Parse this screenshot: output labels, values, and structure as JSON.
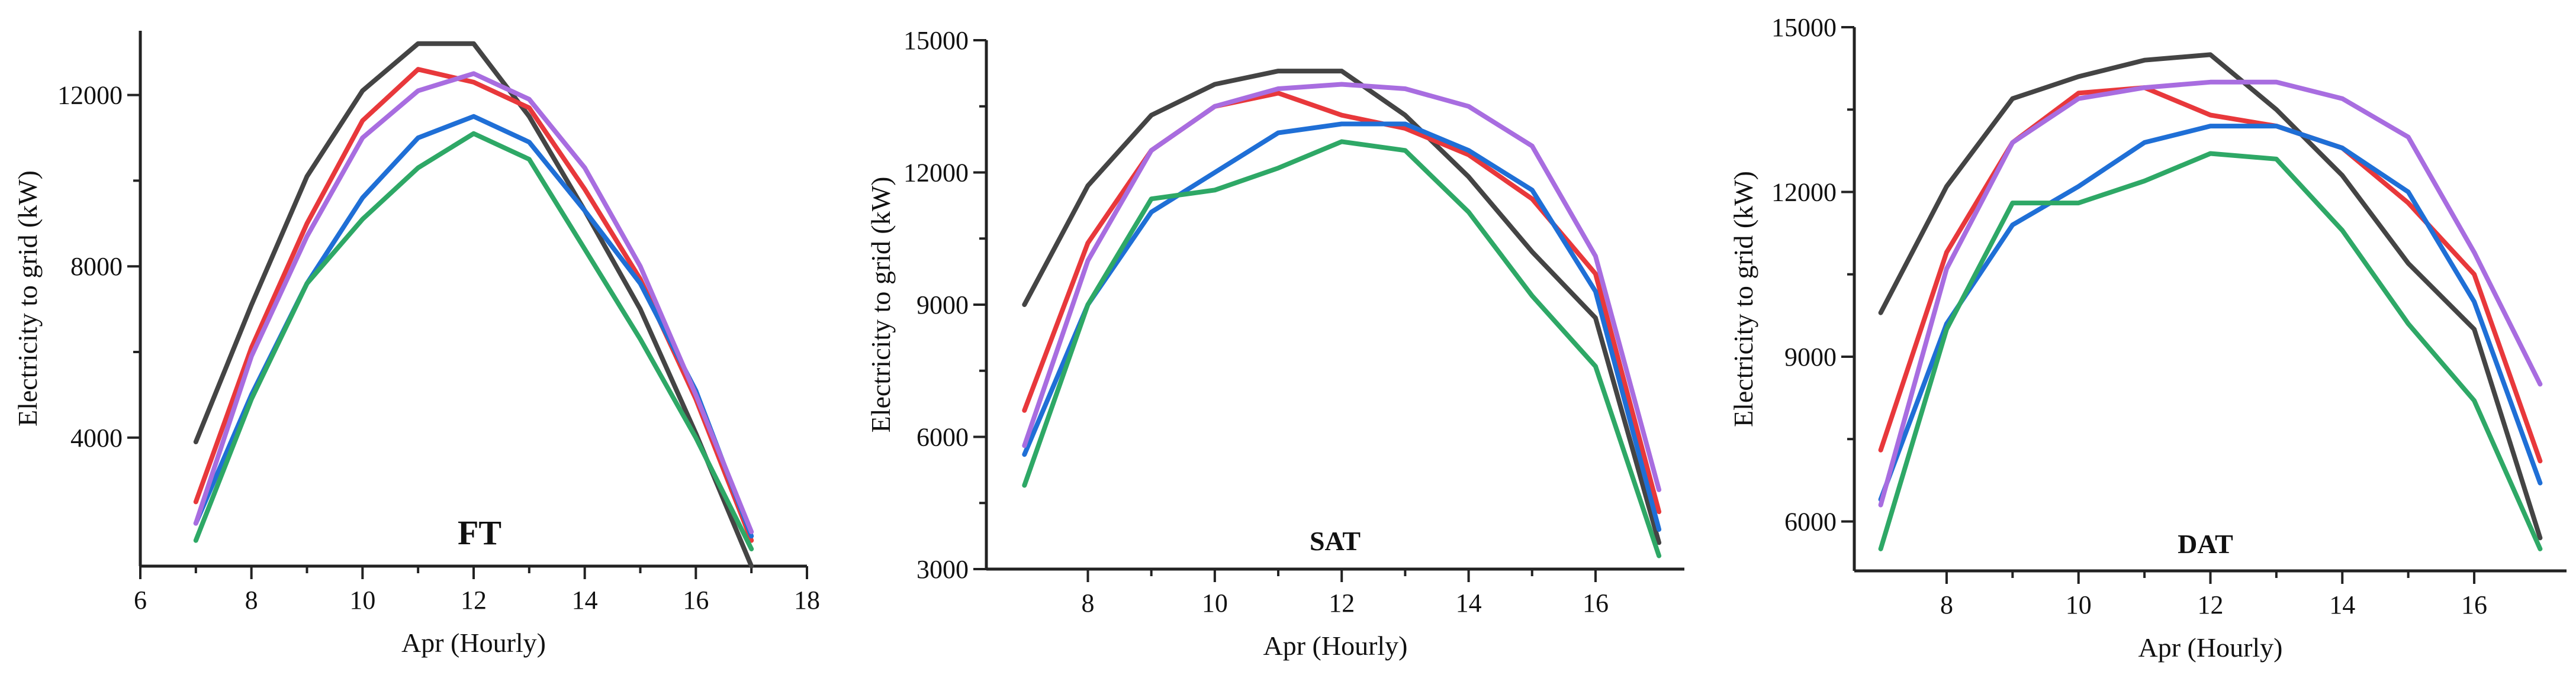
{
  "chart_data": [
    {
      "type": "line",
      "title": "FT",
      "xlabel": "Apr (Hourly)",
      "ylabel": "Electricity to grid (kW)",
      "xlim": [
        6,
        18
      ],
      "ylim": [
        1000,
        13500
      ],
      "xticks": [
        6,
        8,
        10,
        12,
        14,
        16,
        18
      ],
      "yticks": [
        4000,
        8000,
        12000
      ],
      "x": [
        7,
        8,
        9,
        10,
        11,
        12,
        13,
        14,
        15,
        16,
        17
      ],
      "series": [
        {
          "name": "series-1",
          "color": "#444444",
          "values": [
            3900,
            7100,
            10100,
            12100,
            13200,
            13200,
            11500,
            9300,
            7000,
            4100,
            1000
          ]
        },
        {
          "name": "series-2",
          "color": "#e8383b",
          "values": [
            2500,
            6100,
            9000,
            11400,
            12600,
            12300,
            11700,
            9800,
            7700,
            4900,
            1600
          ]
        },
        {
          "name": "series-3",
          "color": "#1f6fd6",
          "values": [
            2000,
            5000,
            7600,
            9600,
            11000,
            11500,
            10900,
            9300,
            7600,
            5100,
            1700
          ]
        },
        {
          "name": "series-4",
          "color": "#a86de0",
          "values": [
            2000,
            5900,
            8700,
            11000,
            12100,
            12500,
            11900,
            10300,
            8000,
            5000,
            1800
          ]
        },
        {
          "name": "series-5",
          "color": "#2ea866",
          "values": [
            1600,
            4900,
            7600,
            9100,
            10300,
            11100,
            10500,
            8400,
            6300,
            4000,
            1400
          ]
        }
      ]
    },
    {
      "type": "line",
      "title": "SAT",
      "xlabel": "Apr (Hourly)",
      "ylabel": "Electricity to grid (kW)",
      "xlim": [
        6.4,
        17.4
      ],
      "ylim": [
        3000,
        15000
      ],
      "xticks": [
        8,
        10,
        12,
        14,
        16
      ],
      "yticks": [
        3000,
        6000,
        9000,
        12000,
        15000
      ],
      "x": [
        7,
        8,
        9,
        10,
        11,
        12,
        13,
        14,
        15,
        16,
        17
      ],
      "series": [
        {
          "name": "series-1",
          "color": "#444444",
          "values": [
            9000,
            11700,
            13300,
            14000,
            14300,
            14300,
            13300,
            11900,
            10200,
            8700,
            3600
          ]
        },
        {
          "name": "series-2",
          "color": "#e8383b",
          "values": [
            6600,
            10400,
            12500,
            13500,
            13800,
            13300,
            13000,
            12400,
            11400,
            9700,
            4300
          ]
        },
        {
          "name": "series-3",
          "color": "#1f6fd6",
          "values": [
            5600,
            9000,
            11100,
            12000,
            12900,
            13100,
            13100,
            12500,
            11600,
            9300,
            3900
          ]
        },
        {
          "name": "series-4",
          "color": "#a86de0",
          "values": [
            5800,
            10000,
            12500,
            13500,
            13900,
            14000,
            13900,
            13500,
            12600,
            10100,
            4800
          ]
        },
        {
          "name": "series-5",
          "color": "#2ea866",
          "values": [
            4900,
            9000,
            11400,
            11600,
            12100,
            12700,
            12500,
            11100,
            9200,
            7600,
            3300
          ]
        }
      ]
    },
    {
      "type": "line",
      "title": "DAT",
      "xlabel": "Apr (Hourly)",
      "ylabel": "Electricity to grid (kW)",
      "xlim": [
        6.6,
        17.4
      ],
      "ylim": [
        5100,
        15000
      ],
      "xticks": [
        8,
        10,
        12,
        14,
        16
      ],
      "yticks": [
        6000,
        9000,
        12000,
        15000
      ],
      "x": [
        7,
        8,
        9,
        10,
        11,
        12,
        13,
        14,
        15,
        16,
        17
      ],
      "series": [
        {
          "name": "series-1",
          "color": "#444444",
          "values": [
            9800,
            12100,
            13700,
            14100,
            14400,
            14500,
            13500,
            12300,
            10700,
            9500,
            5700
          ]
        },
        {
          "name": "series-2",
          "color": "#e8383b",
          "values": [
            7300,
            10900,
            12900,
            13800,
            13900,
            13400,
            13200,
            12800,
            11800,
            10500,
            7100
          ]
        },
        {
          "name": "series-3",
          "color": "#1f6fd6",
          "values": [
            6400,
            9600,
            11400,
            12100,
            12900,
            13200,
            13200,
            12800,
            12000,
            10000,
            6700
          ]
        },
        {
          "name": "series-4",
          "color": "#a86de0",
          "values": [
            6300,
            10600,
            12900,
            13700,
            13900,
            14000,
            14000,
            13700,
            13000,
            10900,
            8500
          ]
        },
        {
          "name": "series-5",
          "color": "#2ea866",
          "values": [
            5500,
            9500,
            11800,
            11800,
            12200,
            12700,
            12600,
            11300,
            9600,
            8200,
            5500
          ]
        }
      ]
    }
  ]
}
